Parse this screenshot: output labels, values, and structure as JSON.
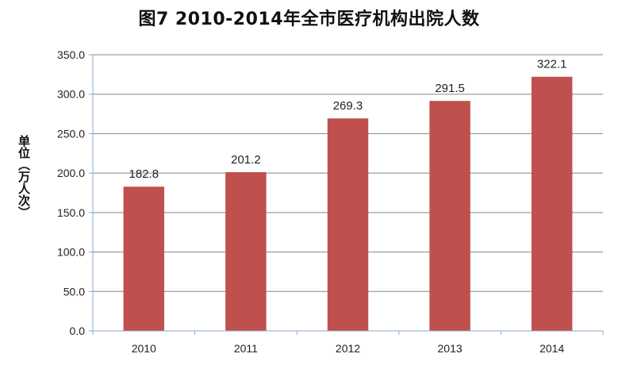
{
  "chart_data": {
    "type": "bar",
    "title": "图7   2010-2014年全市医疗机构出院人数",
    "ylabel": "单位（万人次）",
    "xlabel": "",
    "categories": [
      "2010",
      "2011",
      "2012",
      "2013",
      "2014"
    ],
    "values": [
      182.8,
      201.2,
      269.3,
      291.5,
      322.1
    ],
    "data_labels": [
      "182.8",
      "201.2",
      "269.3",
      "291.5",
      "322.1"
    ],
    "ylim": [
      0,
      350
    ],
    "yticks": [
      "0.0",
      "50.0",
      "100.0",
      "150.0",
      "200.0",
      "250.0",
      "300.0",
      "350.0"
    ],
    "grid": true,
    "legend": "none",
    "bar_color": "#c0504d",
    "grid_color": "#888888",
    "axis_color": "#8ea9c8"
  }
}
